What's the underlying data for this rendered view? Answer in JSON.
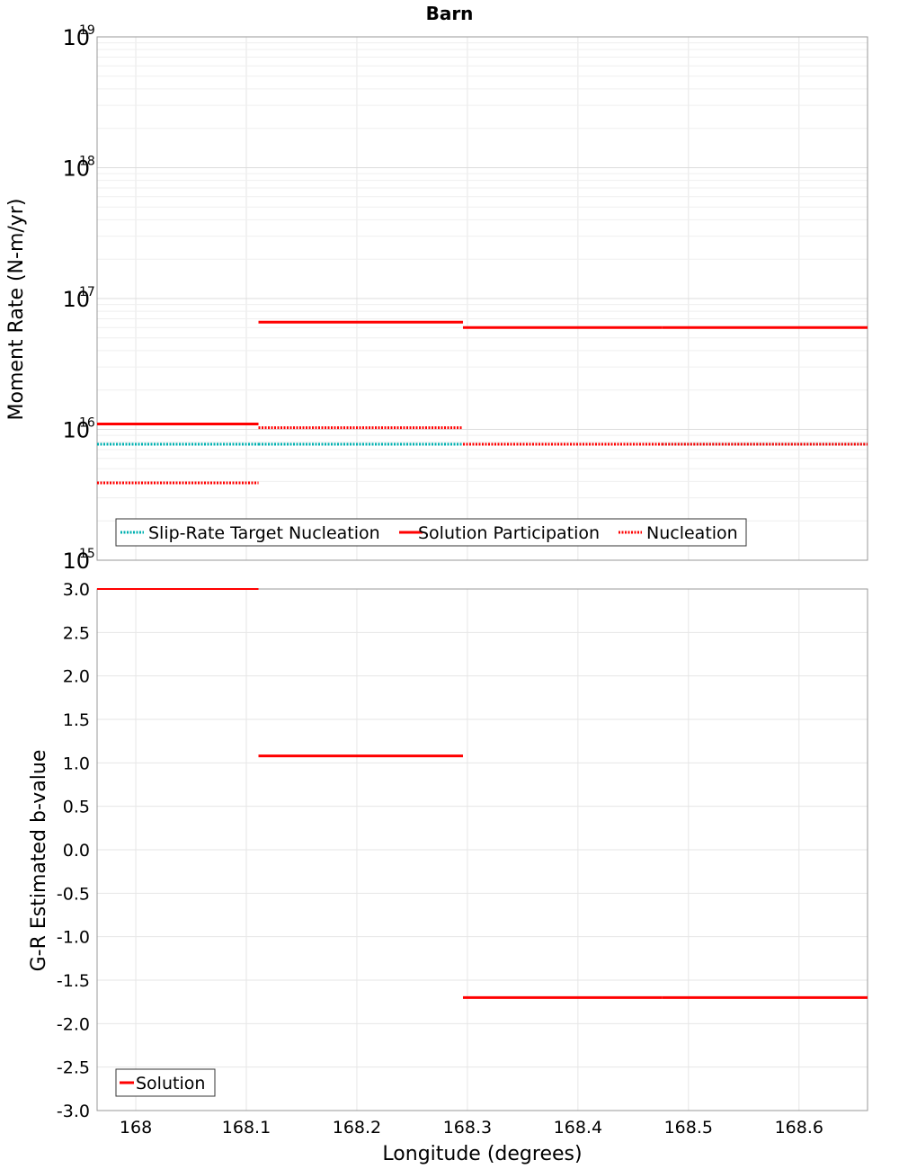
{
  "chart_data": [
    {
      "type": "line",
      "title": "Barn",
      "ylabel": "Moment Rate (N-m/yr)",
      "xlabel": "",
      "yscale": "log",
      "ylim": [
        1000000000000000.0,
        1e+19
      ],
      "xlim": [
        167.965,
        168.662
      ],
      "y_ticks": [
        {
          "base": "10",
          "exp": "15"
        },
        {
          "base": "10",
          "exp": "16"
        },
        {
          "base": "10",
          "exp": "17"
        },
        {
          "base": "10",
          "exp": "18"
        },
        {
          "base": "10",
          "exp": "19"
        }
      ],
      "grid": true,
      "legend_position": "bottom-left",
      "series": [
        {
          "name": "Slip-Rate Target Nucleation",
          "style": "dotted",
          "color": "#00b0b0",
          "segments": [
            {
              "x0": 167.965,
              "x1": 168.111,
              "y": 7700000000000000.0
            },
            {
              "x0": 168.111,
              "x1": 168.296,
              "y": 7700000000000000.0
            },
            {
              "x0": 168.296,
              "x1": 168.476,
              "y": 7700000000000000.0
            },
            {
              "x0": 168.476,
              "x1": 168.662,
              "y": 7700000000000000.0
            }
          ]
        },
        {
          "name": "Solution Participation",
          "style": "solid",
          "color": "#ff0000",
          "segments": [
            {
              "x0": 167.965,
              "x1": 168.111,
              "y": 1.1e+16
            },
            {
              "x0": 168.111,
              "x1": 168.296,
              "y": 6.6e+16
            },
            {
              "x0": 168.296,
              "x1": 168.476,
              "y": 6e+16
            },
            {
              "x0": 168.476,
              "x1": 168.662,
              "y": 6e+16
            }
          ]
        },
        {
          "name": "Nucleation",
          "style": "dotted",
          "color": "#ff0000",
          "segments": [
            {
              "x0": 167.965,
              "x1": 168.111,
              "y": 3900000000000000.0
            },
            {
              "x0": 168.111,
              "x1": 168.296,
              "y": 1.03e+16
            },
            {
              "x0": 168.296,
              "x1": 168.476,
              "y": 7700000000000000.0
            },
            {
              "x0": 168.476,
              "x1": 168.662,
              "y": 7700000000000000.0
            }
          ]
        }
      ]
    },
    {
      "type": "line",
      "title": "",
      "ylabel": "G-R Estimated b-value",
      "xlabel": "Longitude (degrees)",
      "ylim": [
        -3.0,
        3.0
      ],
      "xlim": [
        167.965,
        168.662
      ],
      "y_ticks": [
        "-3.0",
        "-2.5",
        "-2.0",
        "-1.5",
        "-1.0",
        "-0.5",
        "0.0",
        "0.5",
        "1.0",
        "1.5",
        "2.0",
        "2.5",
        "3.0"
      ],
      "x_ticks": [
        "168",
        "168.1",
        "168.2",
        "168.3",
        "168.4",
        "168.5",
        "168.6"
      ],
      "grid": true,
      "legend_position": "bottom-left",
      "series": [
        {
          "name": "Solution",
          "style": "solid",
          "color": "#ff0000",
          "segments": [
            {
              "x0": 167.965,
              "x1": 168.111,
              "y": 3.0
            },
            {
              "x0": 168.111,
              "x1": 168.296,
              "y": 1.08
            },
            {
              "x0": 168.296,
              "x1": 168.476,
              "y": -1.7
            },
            {
              "x0": 168.476,
              "x1": 168.662,
              "y": -1.7
            }
          ]
        }
      ]
    }
  ]
}
